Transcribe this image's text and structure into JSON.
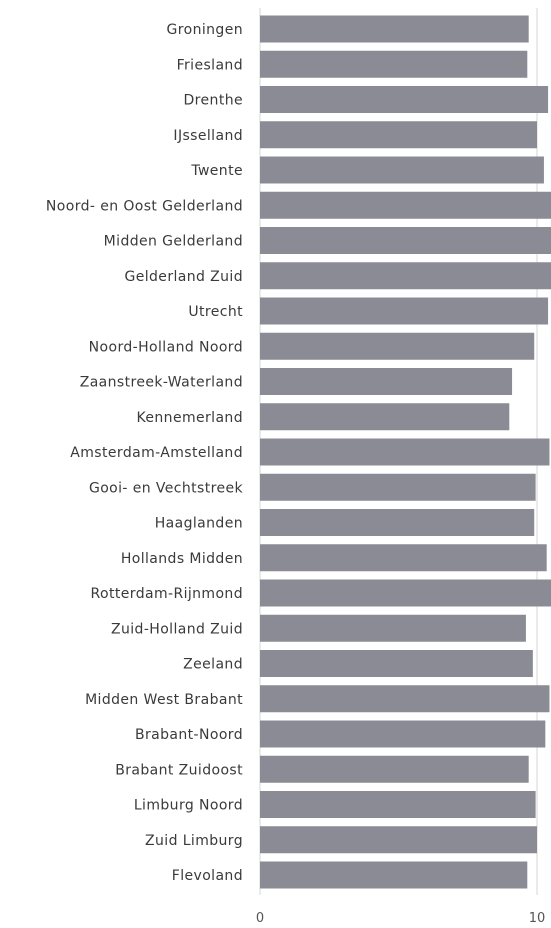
{
  "chart_data": {
    "type": "bar",
    "orientation": "horizontal",
    "categories": [
      "Groningen",
      "Friesland",
      "Drenthe",
      "IJsselland",
      "Twente",
      "Noord- en Oost Gelderland",
      "Midden Gelderland",
      "Gelderland Zuid",
      "Utrecht",
      "Noord-Holland Noord",
      "Zaanstreek-Waterland",
      "Kennemerland",
      "Amsterdam-Amstelland",
      "Gooi- en Vechtstreek",
      "Haaglanden",
      "Hollands Midden",
      "Rotterdam-Rijnmond",
      "Zuid-Holland Zuid",
      "Zeeland",
      "Midden West Brabant",
      "Brabant-Noord",
      "Brabant Zuidoost",
      "Limburg Noord",
      "Zuid Limburg",
      "Flevoland"
    ],
    "values": [
      9.7,
      9.65,
      10.4,
      10.0,
      10.25,
      10.6,
      11.0,
      11.0,
      10.4,
      9.9,
      9.1,
      9.0,
      10.45,
      9.95,
      9.9,
      10.35,
      10.6,
      9.6,
      9.85,
      10.45,
      10.3,
      9.7,
      9.95,
      10.0,
      9.65
    ],
    "xlim": [
      0,
      10.5
    ],
    "x_ticks": [
      0,
      10
    ],
    "grid": true,
    "bar_color": "#8a8b94"
  }
}
